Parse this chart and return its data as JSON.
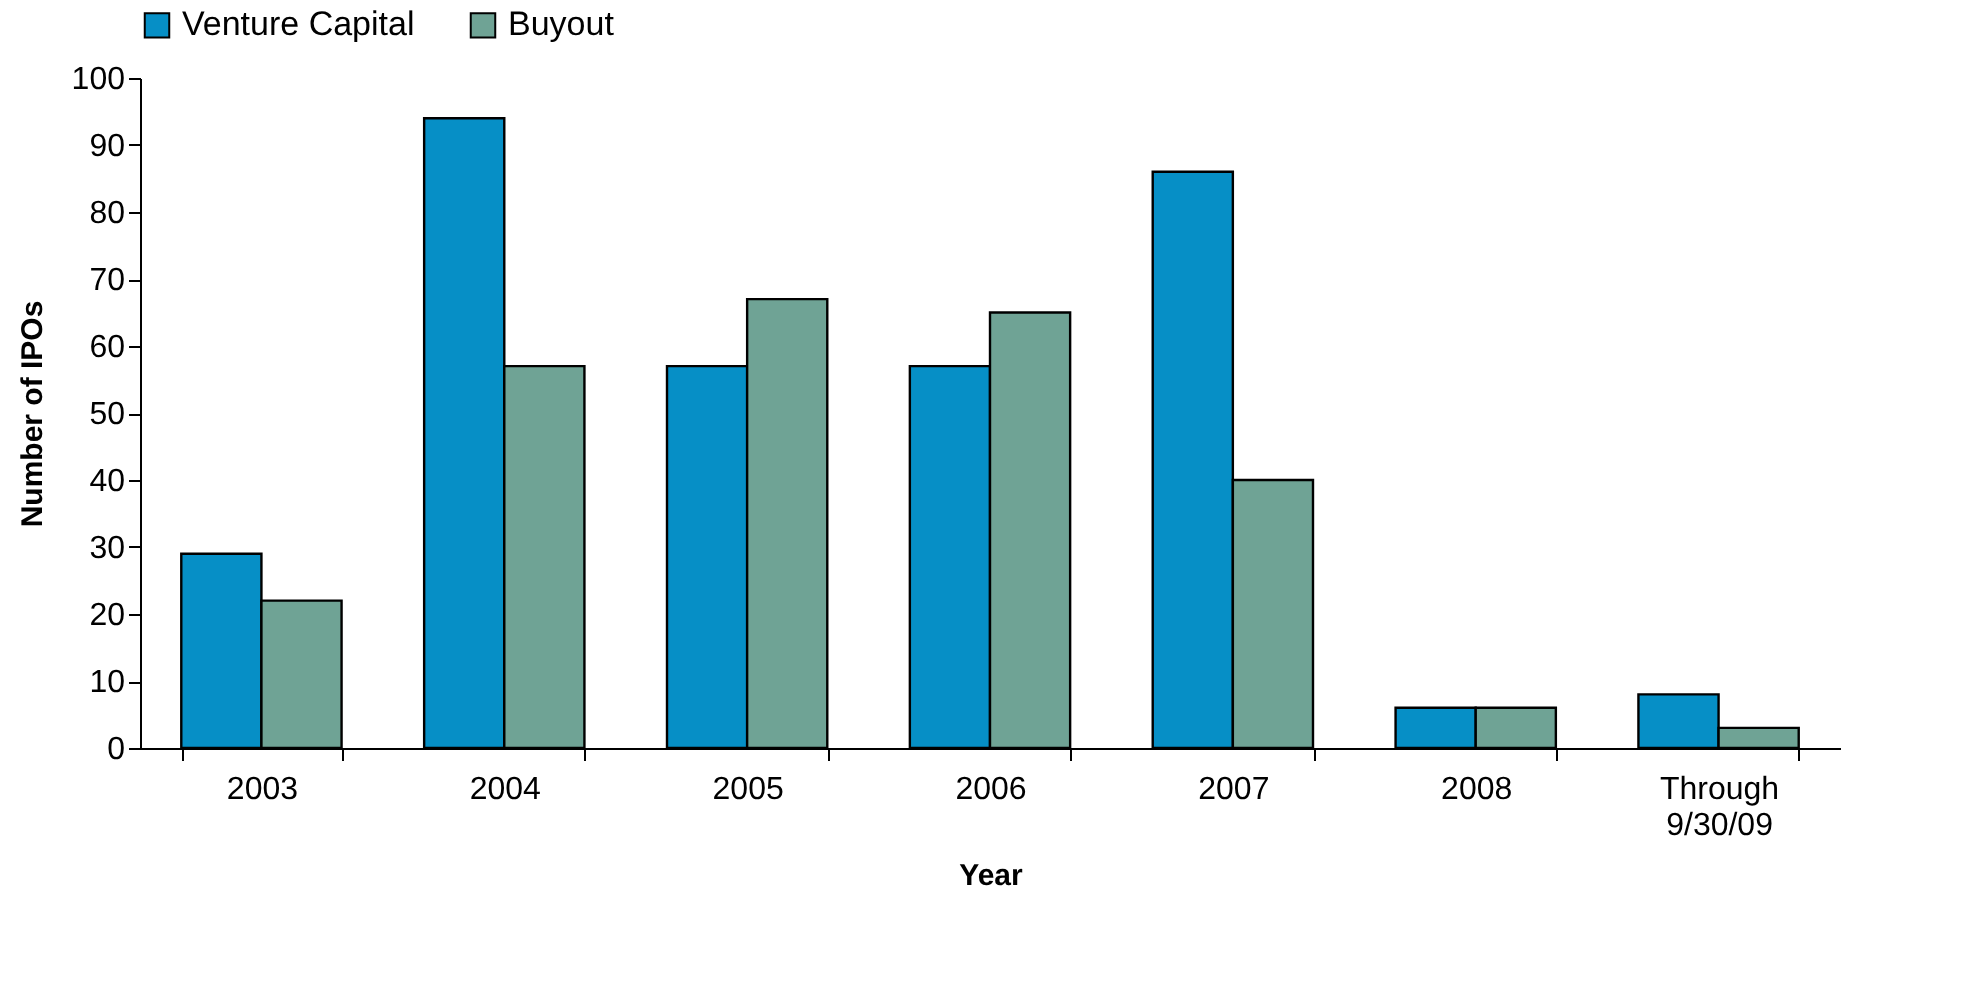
{
  "chart_data": {
    "type": "bar",
    "xlabel": "Year",
    "ylabel": "Number of IPOs",
    "categories": [
      "2003",
      "2004",
      "2005",
      "2006",
      "2007",
      "2008",
      "Through\n9/30/09"
    ],
    "series": [
      {
        "name": "Venture Capital",
        "color": "#068fc6",
        "values": [
          29,
          94,
          57,
          57,
          86,
          6,
          8
        ]
      },
      {
        "name": "Buyout",
        "color": "#6fa395",
        "values": [
          22,
          57,
          67,
          65,
          40,
          6,
          3
        ]
      }
    ],
    "ylim": [
      0,
      100
    ],
    "yticks": [
      0,
      10,
      20,
      30,
      40,
      50,
      60,
      70,
      80,
      90,
      100
    ],
    "grid": false,
    "legend": "top"
  }
}
